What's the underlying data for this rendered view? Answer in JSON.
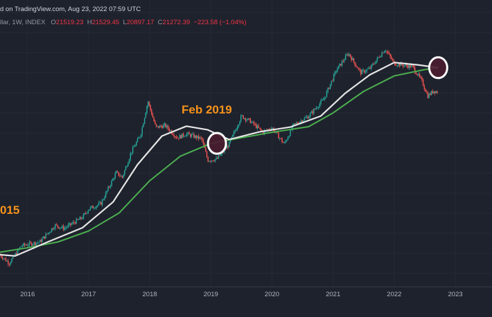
{
  "header": {
    "source_line": "d on TradingView.com, Aug 23, 2022 07:59 UTC",
    "symbol_line": "llar, 1W, INDEX",
    "open_label": "O",
    "open_value": "21519.23",
    "high_label": "H",
    "high_value": "21529.45",
    "low_label": "L",
    "low_value": "20897.17",
    "close_label": "C",
    "close_value": "21272.39",
    "change_value": "−223.58 (−1.04%)"
  },
  "annotations": {
    "feb_2019": "Feb 2019",
    "year_2015": "015"
  },
  "colors": {
    "background": "#1e222d",
    "up": "#26a69a",
    "down": "#ef5350",
    "ma_fast": "#e6e6e6",
    "ma_slow": "#4caf50",
    "annotation": "#f7931a",
    "circle_fill": "#4a1c30",
    "circle_stroke": "#ffffff"
  },
  "chart_data": {
    "type": "candlestick",
    "interval": "1W",
    "x_ticks": [
      "2016",
      "2017",
      "2018",
      "2019",
      "2020",
      "2021",
      "2022",
      "2023"
    ],
    "x_range": [
      2015.55,
      2023.6
    ],
    "y_scale": "log",
    "grid": true,
    "price_path": [
      {
        "x": 2015.55,
        "y": 300
      },
      {
        "x": 2015.7,
        "y": 240
      },
      {
        "x": 2015.9,
        "y": 380
      },
      {
        "x": 2016.2,
        "y": 420
      },
      {
        "x": 2016.45,
        "y": 650
      },
      {
        "x": 2016.6,
        "y": 600
      },
      {
        "x": 2016.9,
        "y": 800
      },
      {
        "x": 2017.0,
        "y": 1000
      },
      {
        "x": 2017.2,
        "y": 1150
      },
      {
        "x": 2017.45,
        "y": 2600
      },
      {
        "x": 2017.55,
        "y": 2300
      },
      {
        "x": 2017.7,
        "y": 4500
      },
      {
        "x": 2017.85,
        "y": 7000
      },
      {
        "x": 2017.97,
        "y": 17000
      },
      {
        "x": 2018.1,
        "y": 8500
      },
      {
        "x": 2018.25,
        "y": 9000
      },
      {
        "x": 2018.45,
        "y": 6500
      },
      {
        "x": 2018.6,
        "y": 7200
      },
      {
        "x": 2018.85,
        "y": 6300
      },
      {
        "x": 2018.95,
        "y": 3600
      },
      {
        "x": 2019.1,
        "y": 3700
      },
      {
        "x": 2019.3,
        "y": 5500
      },
      {
        "x": 2019.5,
        "y": 11500
      },
      {
        "x": 2019.65,
        "y": 10000
      },
      {
        "x": 2019.85,
        "y": 7500
      },
      {
        "x": 2020.0,
        "y": 8500
      },
      {
        "x": 2020.2,
        "y": 5500
      },
      {
        "x": 2020.35,
        "y": 9000
      },
      {
        "x": 2020.6,
        "y": 11500
      },
      {
        "x": 2020.85,
        "y": 18000
      },
      {
        "x": 2021.05,
        "y": 38000
      },
      {
        "x": 2021.25,
        "y": 60000
      },
      {
        "x": 2021.45,
        "y": 36000
      },
      {
        "x": 2021.6,
        "y": 40000
      },
      {
        "x": 2021.85,
        "y": 67000
      },
      {
        "x": 2022.0,
        "y": 46000
      },
      {
        "x": 2022.3,
        "y": 42000
      },
      {
        "x": 2022.45,
        "y": 29000
      },
      {
        "x": 2022.55,
        "y": 19500
      },
      {
        "x": 2022.65,
        "y": 22500
      },
      {
        "x": 2022.72,
        "y": 21300
      }
    ],
    "ma_fast": [
      {
        "x": 2015.55,
        "y": 300
      },
      {
        "x": 2015.8,
        "y": 290
      },
      {
        "x": 2016.3,
        "y": 410
      },
      {
        "x": 2016.9,
        "y": 610
      },
      {
        "x": 2017.4,
        "y": 1200
      },
      {
        "x": 2017.8,
        "y": 3200
      },
      {
        "x": 2018.2,
        "y": 6800
      },
      {
        "x": 2018.6,
        "y": 8800
      },
      {
        "x": 2018.95,
        "y": 8000
      },
      {
        "x": 2019.3,
        "y": 6200
      },
      {
        "x": 2019.8,
        "y": 7600
      },
      {
        "x": 2020.3,
        "y": 8600
      },
      {
        "x": 2020.8,
        "y": 11500
      },
      {
        "x": 2021.2,
        "y": 21000
      },
      {
        "x": 2021.6,
        "y": 34000
      },
      {
        "x": 2022.0,
        "y": 47000
      },
      {
        "x": 2022.4,
        "y": 44000
      },
      {
        "x": 2022.72,
        "y": 41000
      }
    ],
    "ma_slow": [
      {
        "x": 2015.55,
        "y": 320
      },
      {
        "x": 2016.0,
        "y": 360
      },
      {
        "x": 2016.5,
        "y": 420
      },
      {
        "x": 2017.0,
        "y": 560
      },
      {
        "x": 2017.5,
        "y": 900
      },
      {
        "x": 2018.0,
        "y": 2100
      },
      {
        "x": 2018.5,
        "y": 4000
      },
      {
        "x": 2019.0,
        "y": 5600
      },
      {
        "x": 2019.5,
        "y": 6500
      },
      {
        "x": 2020.0,
        "y": 7500
      },
      {
        "x": 2020.6,
        "y": 8700
      },
      {
        "x": 2021.0,
        "y": 12500
      },
      {
        "x": 2021.5,
        "y": 22000
      },
      {
        "x": 2022.0,
        "y": 33000
      },
      {
        "x": 2022.5,
        "y": 39000
      },
      {
        "x": 2022.72,
        "y": 41000
      }
    ],
    "highlighted_points": [
      {
        "x": 2019.1,
        "y": 5600,
        "label": "Feb 2019"
      },
      {
        "x": 2022.72,
        "y": 41000,
        "label": ""
      }
    ]
  }
}
